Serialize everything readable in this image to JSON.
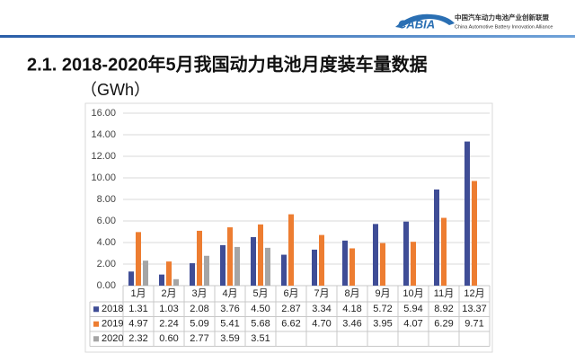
{
  "header": {
    "logo": "CABIA",
    "org_cn": "中国汽车动力电池产业创新联盟",
    "org_en": "China Automotive Battery Innovation Alliance"
  },
  "chart_data": {
    "type": "bar",
    "title": "2.1. 2018-2020年5月我国动力电池月度装车量数据",
    "subtitle": "（GWh）",
    "categories": [
      "1月",
      "2月",
      "3月",
      "4月",
      "5月",
      "6月",
      "7月",
      "8月",
      "9月",
      "10月",
      "11月",
      "12月"
    ],
    "series": [
      {
        "name": "2018",
        "color": "#3f4d96",
        "values": [
          1.31,
          1.03,
          2.08,
          3.76,
          4.5,
          2.87,
          3.34,
          4.18,
          5.72,
          5.94,
          8.92,
          13.37
        ],
        "value_labels": [
          "1.31",
          "1.03",
          "2.08",
          "3.76",
          "4.50",
          "2.87",
          "3.34",
          "4.18",
          "5.72",
          "5.94",
          "8.92",
          "13.37"
        ]
      },
      {
        "name": "2019",
        "color": "#ed7d31",
        "values": [
          4.97,
          2.24,
          5.09,
          5.41,
          5.68,
          6.62,
          4.7,
          3.46,
          3.95,
          4.07,
          6.29,
          9.71
        ],
        "value_labels": [
          "4.97",
          "2.24",
          "5.09",
          "5.41",
          "5.68",
          "6.62",
          "4.70",
          "3.46",
          "3.95",
          "4.07",
          "6.29",
          "9.71"
        ]
      },
      {
        "name": "2020",
        "color": "#a5a5a5",
        "values": [
          2.32,
          0.6,
          2.77,
          3.59,
          3.51,
          null,
          null,
          null,
          null,
          null,
          null,
          null
        ],
        "value_labels": [
          "2.32",
          "0.60",
          "2.77",
          "3.59",
          "3.51",
          null,
          null,
          null,
          null,
          null,
          null,
          null
        ]
      }
    ],
    "ylim": [
      0,
      16
    ],
    "yticks": [
      {
        "value": 0,
        "label": "0.00"
      },
      {
        "value": 2,
        "label": "2.00"
      },
      {
        "value": 4,
        "label": "4.00"
      },
      {
        "value": 6,
        "label": "6.00"
      },
      {
        "value": 8,
        "label": "8.00"
      },
      {
        "value": 10,
        "label": "10.00"
      },
      {
        "value": 12,
        "label": "12.00"
      },
      {
        "value": 14,
        "label": "14.00"
      },
      {
        "value": 16,
        "label": "16.00"
      }
    ],
    "grid": true
  }
}
